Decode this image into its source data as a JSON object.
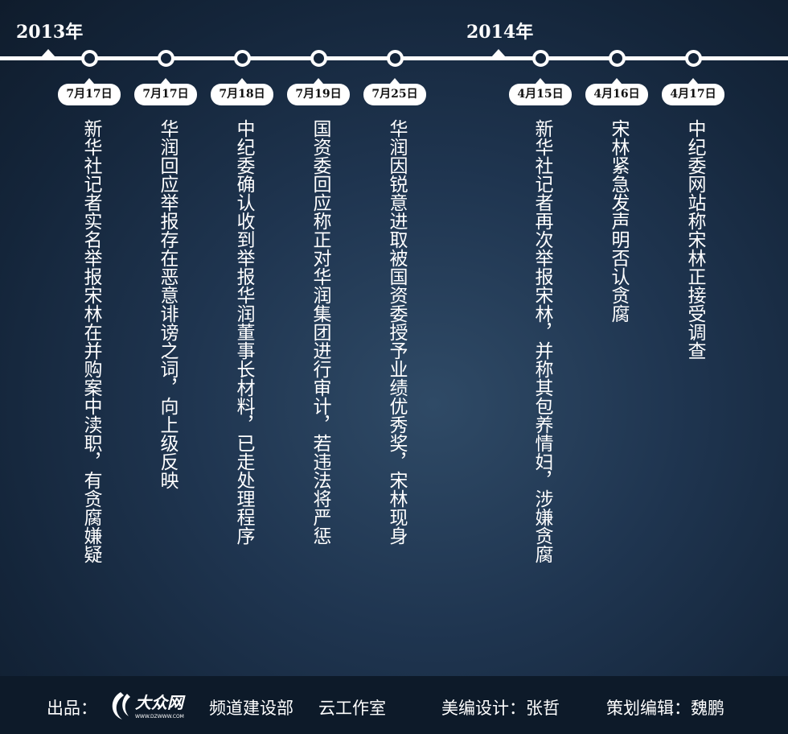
{
  "timeline": {
    "years": [
      "2013年",
      "2014年"
    ],
    "events": [
      {
        "date": "7月17日",
        "text": "新华社记者实名举报宋林在并购案中渎职，有贪腐嫌疑"
      },
      {
        "date": "7月17日",
        "text": "华润回应举报存在恶意诽谤之词，向上级反映"
      },
      {
        "date": "7月18日",
        "text": "中纪委确认收到举报华润董事长材料，已走处理程序"
      },
      {
        "date": "7月19日",
        "text": "国资委回应称正对华润集团进行审计，若违法将严惩"
      },
      {
        "date": "7月25日",
        "text": "华润因锐意进取被国资委授予业绩优秀奖，宋林现身"
      },
      {
        "date": "4月15日",
        "text": "新华社记者再次举报宋林，并称其包养情妇，涉嫌贪腐"
      },
      {
        "date": "4月16日",
        "text": "宋林紧急发声明否认贪腐"
      },
      {
        "date": "4月17日",
        "text": "中纪委网站称宋林正接受调查"
      }
    ]
  },
  "footer": {
    "producer_label": "出品：",
    "logo_text": "大众网",
    "logo_url_text": "WWW.DZWWW.COM",
    "dept": "频道建设部",
    "studio": "云工作室",
    "design": "美编设计：张哲",
    "editor": "策划编辑：魏鹏"
  }
}
